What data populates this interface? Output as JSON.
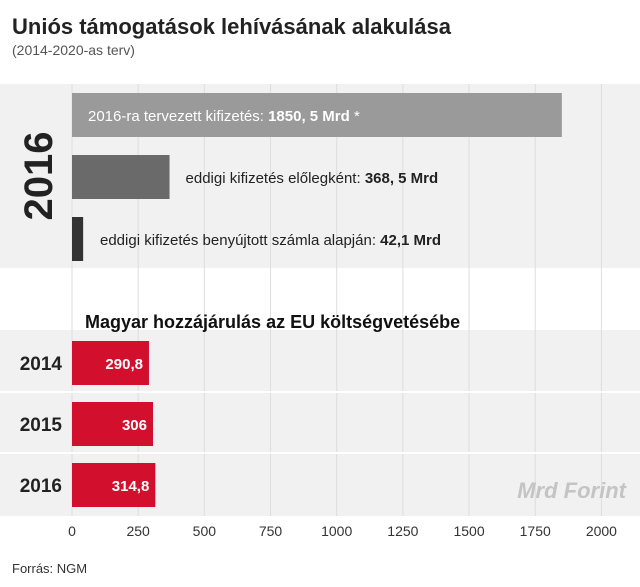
{
  "title": "Uniós támogatások lehívásának alakulása",
  "subtitle": "(2014-2020-as terv)",
  "source": "Forrás: NGM",
  "colors": {
    "panel": "#f1f1f1",
    "grid": "#dddddd",
    "bar_planned": "#9a9a9a",
    "bar_advance": "#6a6a6a",
    "bar_invoice": "#333333",
    "bar_contribution": "#d2102e",
    "unit_text": "#c4c4c4"
  },
  "chart_data": [
    {
      "type": "bar",
      "orientation": "horizontal",
      "group_label": "2016",
      "categories": [
        "2016-ra tervezett kifizetés",
        "eddigi kifizetés előlegként",
        "eddigi kifizetés benyújtott számla alapján"
      ],
      "values": [
        1850.5,
        368.5,
        42.1
      ],
      "bar_labels": [
        {
          "text": "2016-ra tervezett kifizetés: ",
          "value": "1850, 5 Mrd",
          "suffix": " *"
        },
        {
          "text": "eddigi kifizetés előlegként: ",
          "value": "368, 5 Mrd",
          "suffix": ""
        },
        {
          "text": "eddigi kifizetés benyújtott számla alapján: ",
          "value": "42,1 Mrd",
          "suffix": ""
        }
      ],
      "xlim": [
        0,
        2100
      ],
      "grid": true
    },
    {
      "type": "bar",
      "orientation": "horizontal",
      "title": "Magyar hozzájárulás az EU költségvetésébe",
      "categories": [
        "2014",
        "2015",
        "2016"
      ],
      "values": [
        290.8,
        306,
        314.8
      ],
      "value_labels": [
        "290,8",
        "306",
        "314,8"
      ],
      "xlim": [
        0,
        2100
      ],
      "xticks": [
        0,
        250,
        500,
        750,
        1000,
        1250,
        1500,
        1750,
        2000
      ],
      "unit_label": "Mrd Forint",
      "grid": true
    }
  ]
}
